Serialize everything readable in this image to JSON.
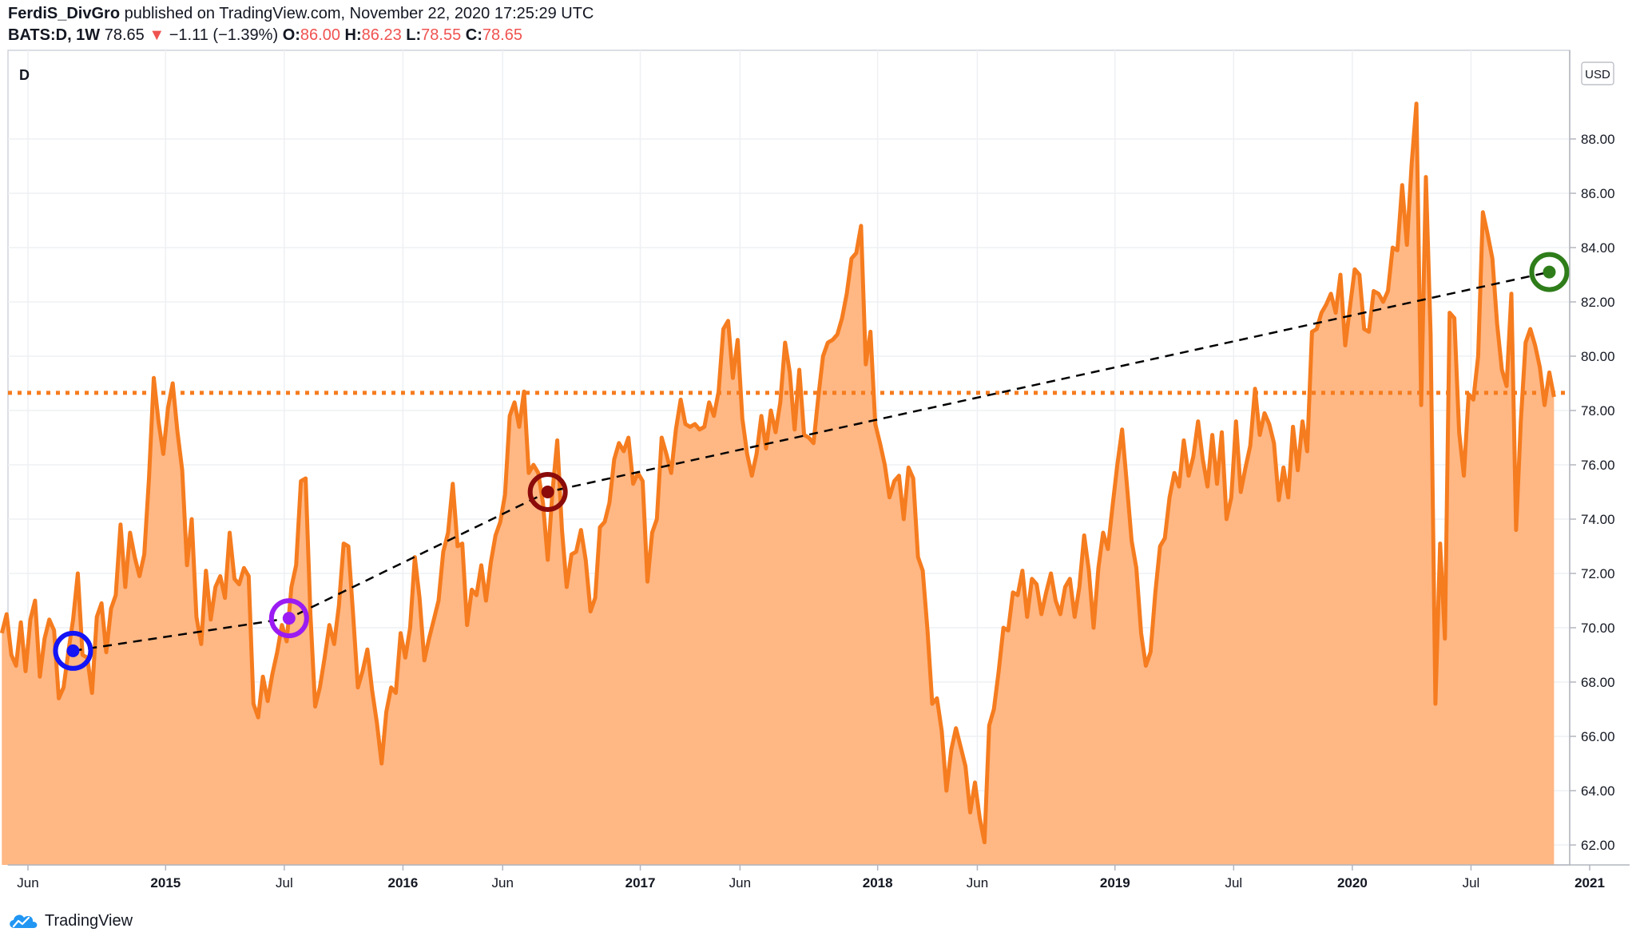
{
  "header": {
    "author": "FerdiS_DivGro",
    "published": "published on TradingView.com, November 22, 2020 17:25:29 UTC",
    "symbol": "BATS:D, 1W",
    "last": "78.65",
    "change_arrow": "▼",
    "change": "−1.11 (−1.39%)",
    "open_label": "O:",
    "open": "86.00",
    "high_label": "H:",
    "high": "86.23",
    "low_label": "L:",
    "low": "78.55",
    "close_label": "C:",
    "close": "78.65"
  },
  "pane_label": "D",
  "currency_label": "USD",
  "footer": {
    "brand": "TradingView",
    "logo_icon": "tradingview-cloud-icon"
  },
  "colors": {
    "line": "#f57c1f",
    "area": "#ffb784",
    "price_line": "#f57c1f",
    "trend": "#000000",
    "marker_blue": "#1414f5",
    "marker_purple": "#9b1cf2",
    "marker_darkred": "#8b0b0b",
    "marker_green": "#2e7d1a"
  },
  "chart_data": {
    "type": "area",
    "x_start": 2014.31,
    "x_end": 2020.85,
    "ylim": [
      61,
      90
    ],
    "yticks": [
      "62.00",
      "64.00",
      "66.00",
      "68.00",
      "70.00",
      "72.00",
      "74.00",
      "76.00",
      "78.00",
      "80.00",
      "82.00",
      "84.00",
      "86.00",
      "88.00"
    ],
    "xticks": [
      {
        "label": "Jun",
        "x": 2014.42
      },
      {
        "label": "2015",
        "x": 2015.0
      },
      {
        "label": "Jul",
        "x": 2015.5
      },
      {
        "label": "2016",
        "x": 2016.0
      },
      {
        "label": "Jun",
        "x": 2016.42
      },
      {
        "label": "2017",
        "x": 2017.0
      },
      {
        "label": "Jun",
        "x": 2017.42
      },
      {
        "label": "2018",
        "x": 2018.0
      },
      {
        "label": "Jun",
        "x": 2018.42
      },
      {
        "label": "2019",
        "x": 2019.0
      },
      {
        "label": "Jul",
        "x": 2019.5
      },
      {
        "label": "2020",
        "x": 2020.0
      },
      {
        "label": "Jul",
        "x": 2020.5
      },
      {
        "label": "2021",
        "x": 2021.0
      }
    ],
    "last_price": 78.65,
    "points": [
      [
        2014.31,
        69.8
      ],
      [
        2014.33,
        70.5
      ],
      [
        2014.35,
        69.0
      ],
      [
        2014.37,
        68.6
      ],
      [
        2014.39,
        70.2
      ],
      [
        2014.41,
        68.4
      ],
      [
        2014.43,
        70.3
      ],
      [
        2014.45,
        71.0
      ],
      [
        2014.47,
        68.2
      ],
      [
        2014.49,
        69.6
      ],
      [
        2014.51,
        70.3
      ],
      [
        2014.53,
        69.9
      ],
      [
        2014.55,
        67.4
      ],
      [
        2014.57,
        67.8
      ],
      [
        2014.59,
        69.1
      ],
      [
        2014.61,
        70.3
      ],
      [
        2014.63,
        72.0
      ],
      [
        2014.65,
        69.0
      ],
      [
        2014.67,
        68.9
      ],
      [
        2014.69,
        67.6
      ],
      [
        2014.71,
        70.4
      ],
      [
        2014.73,
        70.9
      ],
      [
        2014.75,
        69.1
      ],
      [
        2014.77,
        70.7
      ],
      [
        2014.79,
        71.2
      ],
      [
        2014.81,
        73.8
      ],
      [
        2014.83,
        71.5
      ],
      [
        2014.85,
        73.5
      ],
      [
        2014.87,
        72.6
      ],
      [
        2014.89,
        71.9
      ],
      [
        2014.91,
        72.7
      ],
      [
        2014.93,
        75.5
      ],
      [
        2014.95,
        79.2
      ],
      [
        2014.97,
        77.6
      ],
      [
        2014.99,
        76.4
      ],
      [
        2015.01,
        78.1
      ],
      [
        2015.03,
        79.0
      ],
      [
        2015.05,
        77.2
      ],
      [
        2015.07,
        75.8
      ],
      [
        2015.09,
        72.3
      ],
      [
        2015.11,
        74.0
      ],
      [
        2015.13,
        70.4
      ],
      [
        2015.15,
        69.4
      ],
      [
        2015.17,
        72.1
      ],
      [
        2015.19,
        70.3
      ],
      [
        2015.21,
        71.5
      ],
      [
        2015.23,
        71.9
      ],
      [
        2015.25,
        71.1
      ],
      [
        2015.27,
        73.5
      ],
      [
        2015.29,
        71.8
      ],
      [
        2015.31,
        71.6
      ],
      [
        2015.33,
        72.2
      ],
      [
        2015.35,
        71.9
      ],
      [
        2015.37,
        67.2
      ],
      [
        2015.39,
        66.7
      ],
      [
        2015.41,
        68.2
      ],
      [
        2015.43,
        67.3
      ],
      [
        2015.45,
        68.3
      ],
      [
        2015.47,
        69.1
      ],
      [
        2015.49,
        70.1
      ],
      [
        2015.51,
        69.5
      ],
      [
        2015.53,
        71.5
      ],
      [
        2015.55,
        72.3
      ],
      [
        2015.57,
        75.4
      ],
      [
        2015.59,
        75.5
      ],
      [
        2015.61,
        70.5
      ],
      [
        2015.63,
        67.1
      ],
      [
        2015.65,
        67.8
      ],
      [
        2015.67,
        68.9
      ],
      [
        2015.69,
        70.1
      ],
      [
        2015.71,
        69.4
      ],
      [
        2015.73,
        70.8
      ],
      [
        2015.75,
        73.1
      ],
      [
        2015.77,
        73.0
      ],
      [
        2015.79,
        70.5
      ],
      [
        2015.81,
        67.8
      ],
      [
        2015.83,
        68.4
      ],
      [
        2015.85,
        69.2
      ],
      [
        2015.87,
        67.7
      ],
      [
        2015.89,
        66.5
      ],
      [
        2015.91,
        65.0
      ],
      [
        2015.93,
        66.9
      ],
      [
        2015.95,
        67.8
      ],
      [
        2015.97,
        67.6
      ],
      [
        2015.99,
        69.8
      ],
      [
        2016.01,
        68.9
      ],
      [
        2016.03,
        70.0
      ],
      [
        2016.05,
        72.6
      ],
      [
        2016.07,
        71.1
      ],
      [
        2016.09,
        68.8
      ],
      [
        2016.11,
        69.6
      ],
      [
        2016.13,
        70.3
      ],
      [
        2016.15,
        71.0
      ],
      [
        2016.17,
        72.8
      ],
      [
        2016.19,
        73.5
      ],
      [
        2016.21,
        75.3
      ],
      [
        2016.23,
        73.0
      ],
      [
        2016.25,
        73.1
      ],
      [
        2016.27,
        70.1
      ],
      [
        2016.29,
        71.4
      ],
      [
        2016.31,
        71.2
      ],
      [
        2016.33,
        72.3
      ],
      [
        2016.35,
        71.0
      ],
      [
        2016.37,
        72.4
      ],
      [
        2016.39,
        73.4
      ],
      [
        2016.41,
        73.9
      ],
      [
        2016.43,
        74.9
      ],
      [
        2016.45,
        77.8
      ],
      [
        2016.47,
        78.3
      ],
      [
        2016.49,
        77.4
      ],
      [
        2016.51,
        78.7
      ],
      [
        2016.53,
        75.7
      ],
      [
        2016.55,
        76.0
      ],
      [
        2016.57,
        75.7
      ],
      [
        2016.59,
        74.6
      ],
      [
        2016.61,
        72.5
      ],
      [
        2016.63,
        75.0
      ],
      [
        2016.65,
        76.9
      ],
      [
        2016.67,
        73.6
      ],
      [
        2016.69,
        71.5
      ],
      [
        2016.71,
        72.7
      ],
      [
        2016.73,
        72.8
      ],
      [
        2016.75,
        73.6
      ],
      [
        2016.77,
        72.5
      ],
      [
        2016.79,
        70.6
      ],
      [
        2016.81,
        71.1
      ],
      [
        2016.83,
        73.7
      ],
      [
        2016.85,
        73.9
      ],
      [
        2016.87,
        74.6
      ],
      [
        2016.89,
        76.2
      ],
      [
        2016.91,
        76.8
      ],
      [
        2016.93,
        76.5
      ],
      [
        2016.95,
        77.0
      ],
      [
        2016.97,
        75.3
      ],
      [
        2016.99,
        75.7
      ],
      [
        2017.01,
        75.4
      ],
      [
        2017.03,
        71.7
      ],
      [
        2017.05,
        73.5
      ],
      [
        2017.07,
        74.0
      ],
      [
        2017.09,
        77.0
      ],
      [
        2017.11,
        76.4
      ],
      [
        2017.13,
        75.7
      ],
      [
        2017.15,
        77.3
      ],
      [
        2017.17,
        78.4
      ],
      [
        2017.19,
        77.5
      ],
      [
        2017.21,
        77.4
      ],
      [
        2017.23,
        77.5
      ],
      [
        2017.25,
        77.3
      ],
      [
        2017.27,
        77.4
      ],
      [
        2017.29,
        78.3
      ],
      [
        2017.31,
        77.8
      ],
      [
        2017.33,
        78.7
      ],
      [
        2017.35,
        81.0
      ],
      [
        2017.37,
        81.3
      ],
      [
        2017.39,
        79.2
      ],
      [
        2017.41,
        80.6
      ],
      [
        2017.43,
        77.7
      ],
      [
        2017.45,
        76.4
      ],
      [
        2017.47,
        75.6
      ],
      [
        2017.49,
        76.4
      ],
      [
        2017.51,
        77.8
      ],
      [
        2017.53,
        76.6
      ],
      [
        2017.55,
        78.0
      ],
      [
        2017.57,
        77.2
      ],
      [
        2017.59,
        78.3
      ],
      [
        2017.61,
        80.5
      ],
      [
        2017.63,
        79.4
      ],
      [
        2017.65,
        77.3
      ],
      [
        2017.67,
        79.5
      ],
      [
        2017.69,
        77.1
      ],
      [
        2017.71,
        77.0
      ],
      [
        2017.73,
        76.8
      ],
      [
        2017.75,
        78.5
      ],
      [
        2017.77,
        80.0
      ],
      [
        2017.79,
        80.5
      ],
      [
        2017.81,
        80.6
      ],
      [
        2017.83,
        80.8
      ],
      [
        2017.85,
        81.4
      ],
      [
        2017.87,
        82.3
      ],
      [
        2017.89,
        83.6
      ],
      [
        2017.91,
        83.8
      ],
      [
        2017.93,
        84.8
      ],
      [
        2017.95,
        79.7
      ],
      [
        2017.97,
        80.9
      ],
      [
        2017.99,
        77.5
      ],
      [
        2018.01,
        76.8
      ],
      [
        2018.03,
        76.0
      ],
      [
        2018.05,
        74.8
      ],
      [
        2018.07,
        75.4
      ],
      [
        2018.09,
        75.6
      ],
      [
        2018.11,
        74.0
      ],
      [
        2018.13,
        75.9
      ],
      [
        2018.15,
        75.5
      ],
      [
        2018.17,
        72.6
      ],
      [
        2018.19,
        72.1
      ],
      [
        2018.21,
        69.9
      ],
      [
        2018.23,
        67.2
      ],
      [
        2018.25,
        67.4
      ],
      [
        2018.27,
        66.2
      ],
      [
        2018.29,
        64.0
      ],
      [
        2018.31,
        65.5
      ],
      [
        2018.33,
        66.3
      ],
      [
        2018.35,
        65.6
      ],
      [
        2018.37,
        64.9
      ],
      [
        2018.39,
        63.2
      ],
      [
        2018.41,
        64.3
      ],
      [
        2018.43,
        63.0
      ],
      [
        2018.45,
        62.1
      ],
      [
        2018.47,
        66.4
      ],
      [
        2018.49,
        67.0
      ],
      [
        2018.51,
        68.4
      ],
      [
        2018.53,
        70.0
      ],
      [
        2018.55,
        69.9
      ],
      [
        2018.57,
        71.3
      ],
      [
        2018.59,
        71.2
      ],
      [
        2018.61,
        72.1
      ],
      [
        2018.63,
        70.4
      ],
      [
        2018.65,
        71.8
      ],
      [
        2018.67,
        71.6
      ],
      [
        2018.69,
        70.5
      ],
      [
        2018.71,
        71.3
      ],
      [
        2018.73,
        72.0
      ],
      [
        2018.75,
        71.0
      ],
      [
        2018.77,
        70.5
      ],
      [
        2018.79,
        71.5
      ],
      [
        2018.81,
        71.8
      ],
      [
        2018.83,
        70.4
      ],
      [
        2018.85,
        71.5
      ],
      [
        2018.87,
        73.4
      ],
      [
        2018.89,
        72.1
      ],
      [
        2018.91,
        70.0
      ],
      [
        2018.93,
        72.2
      ],
      [
        2018.95,
        73.5
      ],
      [
        2018.97,
        72.9
      ],
      [
        2018.99,
        74.5
      ],
      [
        2019.01,
        76.0
      ],
      [
        2019.03,
        77.3
      ],
      [
        2019.05,
        75.3
      ],
      [
        2019.07,
        73.2
      ],
      [
        2019.09,
        72.2
      ],
      [
        2019.11,
        69.8
      ],
      [
        2019.13,
        68.6
      ],
      [
        2019.15,
        69.1
      ],
      [
        2019.17,
        71.3
      ],
      [
        2019.19,
        73.0
      ],
      [
        2019.21,
        73.3
      ],
      [
        2019.23,
        74.8
      ],
      [
        2019.25,
        75.7
      ],
      [
        2019.27,
        75.2
      ],
      [
        2019.29,
        76.9
      ],
      [
        2019.31,
        75.6
      ],
      [
        2019.33,
        76.3
      ],
      [
        2019.35,
        77.6
      ],
      [
        2019.37,
        76.2
      ],
      [
        2019.39,
        75.2
      ],
      [
        2019.41,
        77.1
      ],
      [
        2019.43,
        75.3
      ],
      [
        2019.45,
        77.2
      ],
      [
        2019.47,
        74.0
      ],
      [
        2019.49,
        74.8
      ],
      [
        2019.51,
        77.6
      ],
      [
        2019.53,
        75.0
      ],
      [
        2019.55,
        75.9
      ],
      [
        2019.57,
        76.7
      ],
      [
        2019.59,
        78.8
      ],
      [
        2019.61,
        77.1
      ],
      [
        2019.63,
        77.9
      ],
      [
        2019.65,
        77.5
      ],
      [
        2019.67,
        76.8
      ],
      [
        2019.69,
        74.7
      ],
      [
        2019.71,
        75.9
      ],
      [
        2019.73,
        74.8
      ],
      [
        2019.75,
        77.4
      ],
      [
        2019.77,
        75.8
      ],
      [
        2019.79,
        77.6
      ],
      [
        2019.81,
        76.5
      ],
      [
        2019.83,
        80.9
      ],
      [
        2019.85,
        81.0
      ],
      [
        2019.87,
        81.6
      ],
      [
        2019.89,
        81.9
      ],
      [
        2019.91,
        82.3
      ],
      [
        2019.93,
        81.6
      ],
      [
        2019.95,
        83.0
      ],
      [
        2019.97,
        80.4
      ],
      [
        2019.99,
        81.8
      ],
      [
        2020.01,
        83.2
      ],
      [
        2020.03,
        83.0
      ],
      [
        2020.05,
        81.0
      ],
      [
        2020.07,
        80.9
      ],
      [
        2020.09,
        82.4
      ],
      [
        2020.11,
        82.3
      ],
      [
        2020.13,
        82.0
      ],
      [
        2020.15,
        82.4
      ],
      [
        2020.17,
        84.0
      ],
      [
        2020.19,
        83.9
      ],
      [
        2020.21,
        86.3
      ],
      [
        2020.23,
        84.1
      ],
      [
        2020.25,
        87.1
      ],
      [
        2020.27,
        89.3
      ],
      [
        2020.29,
        78.2
      ],
      [
        2020.31,
        86.6
      ],
      [
        2020.33,
        80.8
      ],
      [
        2020.35,
        67.2
      ],
      [
        2020.37,
        73.1
      ],
      [
        2020.39,
        69.6
      ],
      [
        2020.41,
        81.6
      ],
      [
        2020.43,
        81.4
      ],
      [
        2020.45,
        77.2
      ],
      [
        2020.47,
        75.6
      ],
      [
        2020.49,
        78.6
      ],
      [
        2020.51,
        78.4
      ],
      [
        2020.53,
        80.0
      ],
      [
        2020.55,
        85.3
      ],
      [
        2020.57,
        84.5
      ],
      [
        2020.59,
        83.6
      ],
      [
        2020.61,
        81.2
      ],
      [
        2020.63,
        79.5
      ],
      [
        2020.65,
        78.9
      ],
      [
        2020.67,
        82.3
      ],
      [
        2020.69,
        73.6
      ],
      [
        2020.71,
        77.6
      ],
      [
        2020.73,
        80.5
      ],
      [
        2020.75,
        81.0
      ],
      [
        2020.77,
        80.4
      ],
      [
        2020.79,
        79.6
      ],
      [
        2020.81,
        78.2
      ],
      [
        2020.83,
        79.4
      ],
      [
        2020.85,
        78.5
      ]
    ],
    "trend_points": [
      [
        2014.61,
        69.15
      ],
      [
        2015.52,
        70.35
      ],
      [
        2016.61,
        75.0
      ],
      [
        2020.83,
        83.1
      ]
    ],
    "markers": [
      {
        "x": 2014.61,
        "y": 69.15,
        "color": "#1414f5"
      },
      {
        "x": 2015.52,
        "y": 70.35,
        "color": "#9b1cf2"
      },
      {
        "x": 2016.61,
        "y": 75.0,
        "color": "#8b0b0b"
      },
      {
        "x": 2020.83,
        "y": 83.1,
        "color": "#2e7d1a"
      }
    ]
  }
}
